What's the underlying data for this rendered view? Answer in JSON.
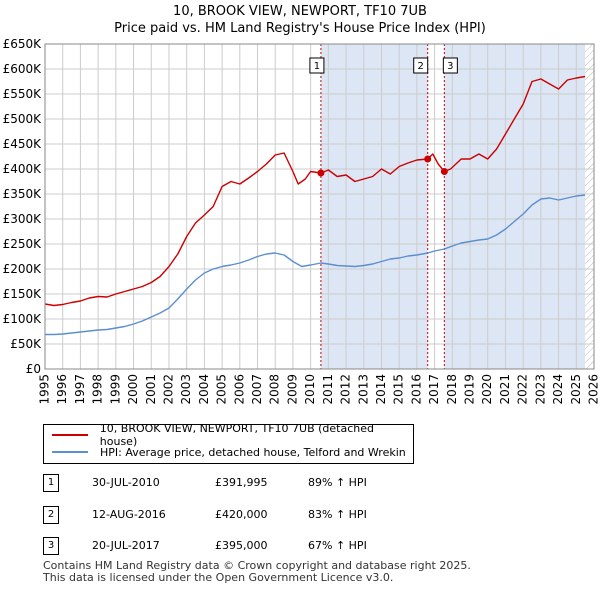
{
  "title_line1": "10, BROOK VIEW, NEWPORT, TF10 7UB",
  "title_line2": "Price paid vs. HM Land Registry's House Price Index (HPI)",
  "colors": {
    "property": "#cc0000",
    "hpi": "#5b8fcf",
    "shade": "#dde6f4",
    "grid": "#cccccc",
    "marker_line": "#cc0000",
    "hatch": "#bbbbbb"
  },
  "legend": {
    "property": "10, BROOK VIEW, NEWPORT, TF10 7UB (detached house)",
    "hpi": "HPI: Average price, detached house, Telford and Wrekin"
  },
  "sales": [
    {
      "num": "1",
      "date": "30-JUL-2010",
      "price": "£391,995",
      "hpi": "89% ↑ HPI"
    },
    {
      "num": "2",
      "date": "12-AUG-2016",
      "price": "£420,000",
      "hpi": "83% ↑ HPI"
    },
    {
      "num": "3",
      "date": "20-JUL-2017",
      "price": "£395,000",
      "hpi": "67% ↑ HPI"
    }
  ],
  "footer_line1": "Contains HM Land Registry data © Crown copyright and database right 2025.",
  "footer_line2": "This data is licensed under the Open Government Licence v3.0.",
  "chart_data": {
    "type": "line",
    "title": "10, BROOK VIEW, NEWPORT, TF10 7UB — Price paid vs. HM Land Registry's House Price Index (HPI)",
    "xlabel": "",
    "ylabel": "",
    "xlim": [
      1995,
      2026
    ],
    "ylim": [
      0,
      650000
    ],
    "y_ticks": [
      0,
      50000,
      100000,
      150000,
      200000,
      250000,
      300000,
      350000,
      400000,
      450000,
      500000,
      550000,
      600000,
      650000
    ],
    "y_tick_labels": [
      "£0",
      "£50K",
      "£100K",
      "£150K",
      "£200K",
      "£250K",
      "£300K",
      "£350K",
      "£400K",
      "£450K",
      "£500K",
      "£550K",
      "£600K",
      "£650K"
    ],
    "x_ticks": [
      1995,
      1996,
      1997,
      1998,
      1999,
      2000,
      2001,
      2002,
      2003,
      2004,
      2005,
      2006,
      2007,
      2008,
      2009,
      2010,
      2011,
      2012,
      2013,
      2014,
      2015,
      2016,
      2017,
      2018,
      2019,
      2020,
      2021,
      2022,
      2023,
      2024,
      2025,
      2026
    ],
    "grid": true,
    "shaded_periods": [
      [
        2010.58,
        2016.61
      ],
      [
        2017.55,
        2025.5
      ]
    ],
    "hatched_after": 2025.5,
    "sale_markers": [
      {
        "label": "1",
        "x": 2010.58,
        "y": 391995
      },
      {
        "label": "2",
        "x": 2016.61,
        "y": 420000
      },
      {
        "label": "3",
        "x": 2017.55,
        "y": 395000
      }
    ],
    "series": [
      {
        "name": "10, BROOK VIEW, NEWPORT, TF10 7UB (detached house)",
        "color": "#cc0000",
        "points": [
          [
            1995.0,
            130000
          ],
          [
            1995.5,
            127000
          ],
          [
            1996.0,
            129000
          ],
          [
            1996.5,
            133000
          ],
          [
            1997.0,
            136000
          ],
          [
            1997.5,
            142000
          ],
          [
            1998.0,
            145000
          ],
          [
            1998.5,
            144000
          ],
          [
            1999.0,
            150000
          ],
          [
            1999.5,
            155000
          ],
          [
            2000.0,
            160000
          ],
          [
            2000.5,
            165000
          ],
          [
            2001.0,
            173000
          ],
          [
            2001.5,
            185000
          ],
          [
            2002.0,
            205000
          ],
          [
            2002.5,
            230000
          ],
          [
            2003.0,
            265000
          ],
          [
            2003.5,
            292000
          ],
          [
            2004.0,
            308000
          ],
          [
            2004.5,
            325000
          ],
          [
            2005.0,
            365000
          ],
          [
            2005.5,
            375000
          ],
          [
            2006.0,
            370000
          ],
          [
            2006.5,
            382000
          ],
          [
            2007.0,
            395000
          ],
          [
            2007.5,
            410000
          ],
          [
            2008.0,
            428000
          ],
          [
            2008.5,
            432000
          ],
          [
            2009.0,
            395000
          ],
          [
            2009.3,
            370000
          ],
          [
            2009.7,
            380000
          ],
          [
            2010.0,
            395000
          ],
          [
            2010.58,
            391995
          ],
          [
            2011.0,
            398000
          ],
          [
            2011.5,
            385000
          ],
          [
            2012.0,
            388000
          ],
          [
            2012.5,
            375000
          ],
          [
            2013.0,
            380000
          ],
          [
            2013.5,
            385000
          ],
          [
            2014.0,
            400000
          ],
          [
            2014.5,
            390000
          ],
          [
            2015.0,
            405000
          ],
          [
            2015.5,
            412000
          ],
          [
            2016.0,
            418000
          ],
          [
            2016.61,
            420000
          ],
          [
            2016.9,
            430000
          ],
          [
            2017.2,
            410000
          ],
          [
            2017.55,
            395000
          ],
          [
            2017.9,
            400000
          ],
          [
            2018.5,
            420000
          ],
          [
            2019.0,
            420000
          ],
          [
            2019.5,
            430000
          ],
          [
            2020.0,
            420000
          ],
          [
            2020.5,
            440000
          ],
          [
            2021.0,
            470000
          ],
          [
            2021.5,
            500000
          ],
          [
            2022.0,
            530000
          ],
          [
            2022.5,
            575000
          ],
          [
            2023.0,
            580000
          ],
          [
            2023.5,
            570000
          ],
          [
            2024.0,
            560000
          ],
          [
            2024.5,
            578000
          ],
          [
            2025.0,
            582000
          ],
          [
            2025.5,
            585000
          ]
        ]
      },
      {
        "name": "HPI: Average price, detached house, Telford and Wrekin",
        "color": "#5b8fcf",
        "points": [
          [
            1995.0,
            69000
          ],
          [
            1995.5,
            69000
          ],
          [
            1996.0,
            70000
          ],
          [
            1996.5,
            72000
          ],
          [
            1997.0,
            74000
          ],
          [
            1997.5,
            76000
          ],
          [
            1998.0,
            78000
          ],
          [
            1998.5,
            79000
          ],
          [
            1999.0,
            82000
          ],
          [
            1999.5,
            85000
          ],
          [
            2000.0,
            90000
          ],
          [
            2000.5,
            96000
          ],
          [
            2001.0,
            104000
          ],
          [
            2001.5,
            112000
          ],
          [
            2002.0,
            122000
          ],
          [
            2002.5,
            140000
          ],
          [
            2003.0,
            160000
          ],
          [
            2003.5,
            178000
          ],
          [
            2004.0,
            192000
          ],
          [
            2004.5,
            200000
          ],
          [
            2005.0,
            205000
          ],
          [
            2005.5,
            208000
          ],
          [
            2006.0,
            212000
          ],
          [
            2006.5,
            218000
          ],
          [
            2007.0,
            225000
          ],
          [
            2007.5,
            230000
          ],
          [
            2008.0,
            232000
          ],
          [
            2008.5,
            228000
          ],
          [
            2009.0,
            215000
          ],
          [
            2009.5,
            205000
          ],
          [
            2010.0,
            208000
          ],
          [
            2010.58,
            212000
          ],
          [
            2011.0,
            210000
          ],
          [
            2011.5,
            207000
          ],
          [
            2012.0,
            206000
          ],
          [
            2012.5,
            205000
          ],
          [
            2013.0,
            207000
          ],
          [
            2013.5,
            210000
          ],
          [
            2014.0,
            215000
          ],
          [
            2014.5,
            220000
          ],
          [
            2015.0,
            222000
          ],
          [
            2015.5,
            226000
          ],
          [
            2016.0,
            228000
          ],
          [
            2016.61,
            232000
          ],
          [
            2017.0,
            236000
          ],
          [
            2017.55,
            240000
          ],
          [
            2018.0,
            246000
          ],
          [
            2018.5,
            252000
          ],
          [
            2019.0,
            255000
          ],
          [
            2019.5,
            258000
          ],
          [
            2020.0,
            260000
          ],
          [
            2020.5,
            268000
          ],
          [
            2021.0,
            280000
          ],
          [
            2021.5,
            295000
          ],
          [
            2022.0,
            310000
          ],
          [
            2022.5,
            328000
          ],
          [
            2023.0,
            340000
          ],
          [
            2023.5,
            342000
          ],
          [
            2024.0,
            338000
          ],
          [
            2024.5,
            342000
          ],
          [
            2025.0,
            346000
          ],
          [
            2025.5,
            348000
          ]
        ]
      }
    ]
  }
}
